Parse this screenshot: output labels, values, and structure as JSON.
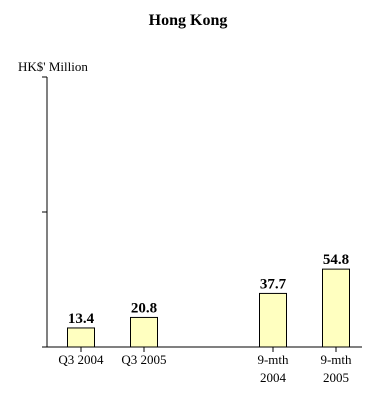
{
  "chart_data": {
    "type": "bar",
    "title": "Hong Kong",
    "ylabel": "HK$' Million",
    "xlabel": "",
    "categories": [
      [
        "Q3 2004"
      ],
      [
        "Q3 2005"
      ],
      [
        "9-mth",
        "2004"
      ],
      [
        "9-mth",
        "2005"
      ]
    ],
    "values": [
      13.4,
      20.8,
      37.7,
      54.8
    ],
    "value_labels": [
      "13.4",
      "20.8",
      "37.7",
      "54.8"
    ],
    "ylim": [
      0,
      190
    ],
    "y_ticks": [
      0,
      95,
      190
    ],
    "grid": false,
    "legend": "none",
    "colors": {
      "bar_fill": "#ffffc0",
      "bar_stroke": "#000000",
      "axis": "#000000"
    }
  }
}
